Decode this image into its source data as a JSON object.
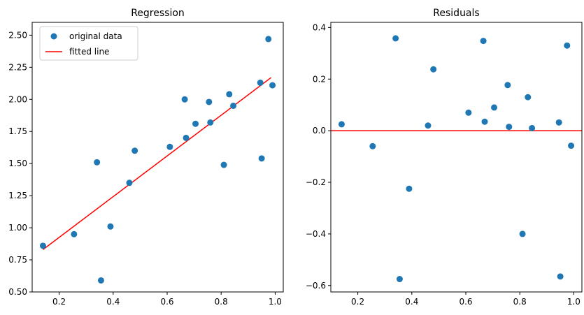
{
  "chart_data": [
    {
      "type": "scatter",
      "title": "Regression",
      "xlabel": "",
      "ylabel": "",
      "xlim": [
        0.1,
        1.03
      ],
      "ylim": [
        0.5,
        2.6
      ],
      "xticks": [
        0.2,
        0.4,
        0.6,
        0.8,
        1.0
      ],
      "xtick_labels": [
        "0.2",
        "0.4",
        "0.6",
        "0.8",
        "1.0"
      ],
      "yticks": [
        0.5,
        0.75,
        1.0,
        1.25,
        1.5,
        1.75,
        2.0,
        2.25,
        2.5
      ],
      "ytick_labels": [
        "0.50",
        "0.75",
        "1.00",
        "1.25",
        "1.50",
        "1.75",
        "2.00",
        "2.25",
        "2.50"
      ],
      "grid": false,
      "legend": {
        "placement": "top-left",
        "entries": [
          {
            "label": "original data",
            "kind": "marker",
            "color": "#1f77b4"
          },
          {
            "label": "fitted line",
            "kind": "line",
            "color": "#ff0000"
          }
        ]
      },
      "series": [
        {
          "name": "original data",
          "kind": "scatter",
          "color": "#1f77b4",
          "points": [
            [
              0.14,
              0.86
            ],
            [
              0.255,
              0.95
            ],
            [
              0.34,
              1.51
            ],
            [
              0.355,
              0.59
            ],
            [
              0.39,
              1.01
            ],
            [
              0.46,
              1.35
            ],
            [
              0.48,
              1.6
            ],
            [
              0.61,
              1.63
            ],
            [
              0.665,
              2.0
            ],
            [
              0.67,
              1.7
            ],
            [
              0.705,
              1.81
            ],
            [
              0.755,
              1.98
            ],
            [
              0.76,
              1.82
            ],
            [
              0.81,
              1.49
            ],
            [
              0.83,
              2.04
            ],
            [
              0.845,
              1.95
            ],
            [
              0.945,
              2.13
            ],
            [
              0.95,
              1.54
            ],
            [
              0.975,
              2.47
            ],
            [
              0.99,
              2.11
            ]
          ]
        },
        {
          "name": "fitted line",
          "kind": "line",
          "color": "#ff0000",
          "points": [
            [
              0.14,
              0.83
            ],
            [
              0.985,
              2.17
            ]
          ]
        }
      ]
    },
    {
      "type": "scatter",
      "title": "Residuals",
      "xlabel": "",
      "ylabel": "",
      "xlim": [
        0.1,
        1.03
      ],
      "ylim": [
        -0.625,
        0.42
      ],
      "xticks": [
        0.2,
        0.4,
        0.6,
        0.8,
        1.0
      ],
      "xtick_labels": [
        "0.2",
        "0.4",
        "0.6",
        "0.8",
        "1.0"
      ],
      "yticks": [
        -0.6,
        -0.4,
        -0.2,
        0.0,
        0.2,
        0.4
      ],
      "ytick_labels": [
        "−0.6",
        "−0.4",
        "−0.2",
        "0.0",
        "0.2",
        "0.4"
      ],
      "grid": false,
      "hline": {
        "y": 0.0,
        "color": "#ff0000"
      },
      "series": [
        {
          "kind": "scatter",
          "color": "#1f77b4",
          "points": [
            [
              0.14,
              0.025
            ],
            [
              0.255,
              -0.06
            ],
            [
              0.34,
              0.358
            ],
            [
              0.355,
              -0.575
            ],
            [
              0.39,
              -0.225
            ],
            [
              0.46,
              0.02
            ],
            [
              0.48,
              0.238
            ],
            [
              0.61,
              0.07
            ],
            [
              0.665,
              0.348
            ],
            [
              0.67,
              0.035
            ],
            [
              0.705,
              0.09
            ],
            [
              0.755,
              0.177
            ],
            [
              0.76,
              0.015
            ],
            [
              0.81,
              -0.4
            ],
            [
              0.83,
              0.13
            ],
            [
              0.845,
              0.01
            ],
            [
              0.945,
              0.032
            ],
            [
              0.95,
              -0.565
            ],
            [
              0.975,
              0.33
            ],
            [
              0.99,
              -0.058
            ]
          ]
        }
      ]
    }
  ]
}
